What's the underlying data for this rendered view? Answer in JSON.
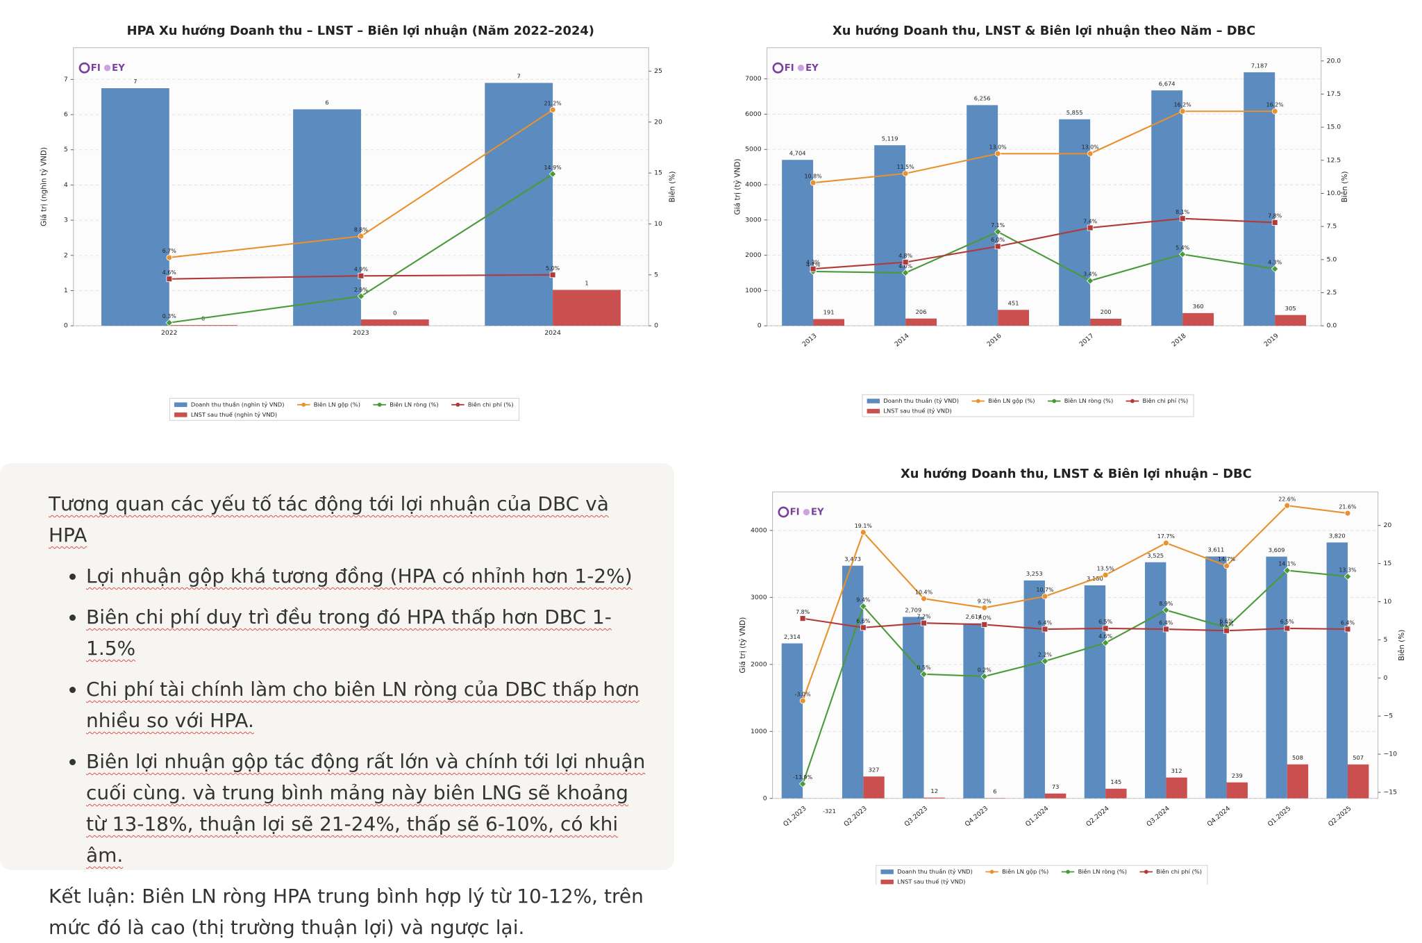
{
  "chart_data": [
    {
      "type": "bar",
      "title": "HPA Xu hướng Doanh thu – LNST – Biên lợi nhuận (Năm 2022–2024)",
      "ylabel": "Giá trị (nghìn tỷ VND)",
      "y2label": "Biên (%)",
      "watermark": [
        "FI",
        "EY"
      ],
      "grid": true,
      "xtick_rotation": 0,
      "categories": [
        "2022",
        "2023",
        "2024"
      ],
      "ylim": [
        0,
        7.9
      ],
      "yticks": [
        0,
        1,
        2,
        3,
        4,
        5,
        6,
        7
      ],
      "y2lim": [
        0,
        27.3
      ],
      "y2ticks": [
        0,
        5,
        10,
        15,
        20,
        25
      ],
      "series": [
        {
          "name": "Doanh thu thuần (nghìn tỷ VND)",
          "type": "bar",
          "color": "#5b8bbf",
          "values": [
            6.75,
            6.15,
            6.9
          ],
          "value_labels": [
            "7",
            "6",
            "7"
          ]
        },
        {
          "name": "LNST sau thuế (nghìn tỷ VND)",
          "type": "bar",
          "color": "#c9504e",
          "values": [
            0.02,
            0.18,
            1.02
          ],
          "value_labels": [
            "0",
            "0",
            "1"
          ]
        },
        {
          "name": "Biên LN gộp (%)",
          "type": "line",
          "marker": "o",
          "axis": "y2",
          "color": "#e8912d",
          "values": [
            6.7,
            8.8,
            21.2
          ],
          "value_labels": [
            "6.7%",
            "8.8%",
            "21.2%"
          ]
        },
        {
          "name": "Biên LN ròng (%)",
          "type": "line",
          "marker": "D",
          "axis": "y2",
          "color": "#4a9a3a",
          "values": [
            0.3,
            2.9,
            14.9
          ],
          "value_labels": [
            "0.3%",
            "2.9%",
            "14.9%"
          ]
        },
        {
          "name": "Biên chi phí (%)",
          "type": "line",
          "marker": "s",
          "axis": "y2",
          "color": "#b03a3a",
          "values": [
            4.6,
            4.9,
            5.0
          ],
          "value_labels": [
            "4.6%",
            "4.9%",
            "5.0%"
          ]
        }
      ]
    },
    {
      "type": "bar",
      "title": "Xu hướng Doanh thu, LNST & Biên lợi nhuận theo Năm – DBC",
      "ylabel": "Giá trị (tỷ VND)",
      "y2label": "Biên (%)",
      "watermark": [
        "FI",
        "EY"
      ],
      "grid": true,
      "xtick_rotation": 40,
      "categories": [
        "2013",
        "2014",
        "2016",
        "2017",
        "2018",
        "2019"
      ],
      "ylim": [
        0,
        7884
      ],
      "yticks": [
        0,
        1000,
        2000,
        3000,
        4000,
        5000,
        6000,
        7000
      ],
      "y2lim": [
        0,
        21
      ],
      "y2ticks": [
        {
          "value": 0,
          "label": "0.0"
        },
        2.5,
        {
          "value": 5,
          "label": "5.0"
        },
        7.5,
        {
          "value": 10,
          "label": "10.0"
        },
        12.5,
        {
          "value": 15,
          "label": "15.0"
        },
        17.5,
        {
          "value": 20,
          "label": "20.0"
        }
      ],
      "series": [
        {
          "name": "Doanh thu thuần (tỷ VND)",
          "type": "bar",
          "color": "#5b8bbf",
          "values": [
            4704,
            5119,
            6256,
            5855,
            6674,
            7187
          ],
          "value_labels": [
            "4,704",
            "5,119",
            "6,256",
            "5,855",
            "6,674",
            "7,187"
          ]
        },
        {
          "name": "LNST sau thuế (tỷ VND)",
          "type": "bar",
          "color": "#c9504e",
          "values": [
            191,
            206,
            451,
            200,
            360,
            305
          ]
        },
        {
          "name": "Biên LN gộp (%)",
          "type": "line",
          "marker": "o",
          "axis": "y2",
          "color": "#e8912d",
          "values": [
            10.8,
            11.5,
            13.0,
            13.0,
            16.2,
            16.2
          ],
          "value_labels": [
            "10.8%",
            "11.5%",
            "13.0%",
            "13.0%",
            "16.2%",
            "16.2%"
          ]
        },
        {
          "name": "Biên LN ròng (%)",
          "type": "line",
          "marker": "D",
          "axis": "y2",
          "color": "#4a9a3a",
          "values": [
            4.1,
            4.0,
            7.1,
            3.4,
            5.4,
            4.3
          ],
          "value_labels": [
            "4.1%",
            "4.0%",
            "7.1%",
            "3.4%",
            "5.4%",
            "4.3%"
          ]
        },
        {
          "name": "Biên chi phí (%)",
          "type": "line",
          "marker": "s",
          "axis": "y2",
          "color": "#b03a3a",
          "values": [
            4.3,
            4.8,
            6.0,
            7.4,
            8.1,
            7.8
          ],
          "value_labels": [
            "4.3%",
            "4.8%",
            "6.0%",
            "7.4%",
            "8.1%",
            "7.8%"
          ]
        }
      ]
    },
    {
      "type": "bar",
      "title": "Xu hướng Doanh thu, LNST & Biên lợi nhuận – DBC",
      "ylabel": "Giá trị (tỷ VND)",
      "y2label": "Biên (%)",
      "watermark": [
        "FI",
        "EY"
      ],
      "grid": true,
      "xtick_rotation": 40,
      "categories": [
        "Q1.2023",
        "Q2.2023",
        "Q3.2023",
        "Q4.2023",
        "Q1.2024",
        "Q2.2024",
        "Q3.2024",
        "Q4.2024",
        "Q1.2025",
        "Q2.2025"
      ],
      "ylim": [
        0,
        4575
      ],
      "yticks": [
        0,
        1000,
        2000,
        3000,
        4000
      ],
      "y2lim": [
        -15.8,
        24.4
      ],
      "y2ticks": [
        {
          "value": -15,
          "label": "−15"
        },
        {
          "value": -10,
          "label": "−10"
        },
        {
          "value": -5,
          "label": "−5"
        },
        0,
        5,
        10,
        15,
        20
      ],
      "series": [
        {
          "name": "Doanh thu thuần (tỷ VND)",
          "type": "bar",
          "color": "#5b8bbf",
          "values": [
            2314,
            3473,
            2709,
            2614,
            3253,
            3180,
            3525,
            3611,
            3609,
            3820
          ],
          "value_labels": [
            "2,314",
            "3,473",
            "2,709",
            "2,614",
            "3,253",
            "3,180",
            "3,525",
            "3,611",
            "3,609",
            "3,820"
          ]
        },
        {
          "name": "LNST sau thuế (tỷ VND)",
          "type": "bar",
          "color": "#c9504e",
          "values": [
            -321,
            327,
            12,
            6,
            73,
            145,
            312,
            239,
            508,
            507
          ]
        },
        {
          "name": "Biên LN gộp (%)",
          "type": "line",
          "marker": "o",
          "axis": "y2",
          "color": "#e8912d",
          "values": [
            -3.0,
            19.1,
            10.4,
            9.2,
            10.7,
            13.5,
            17.7,
            14.7,
            22.6,
            21.6
          ],
          "value_labels": [
            "-3.0%",
            "19.1%",
            "10.4%",
            "9.2%",
            "10.7%",
            "13.5%",
            "17.7%",
            "14.7%",
            "22.6%",
            "21.6%"
          ]
        },
        {
          "name": "Biên LN ròng (%)",
          "type": "line",
          "marker": "D",
          "axis": "y2",
          "color": "#4a9a3a",
          "values": [
            -13.9,
            9.4,
            0.5,
            0.2,
            2.2,
            4.6,
            8.9,
            6.6,
            14.1,
            13.3
          ],
          "value_labels": [
            "-13.9%",
            "9.4%",
            "0.5%",
            "0.2%",
            "2.2%",
            "4.6%",
            "8.9%",
            "6.6%",
            "14.1%",
            "13.3%"
          ]
        },
        {
          "name": "Biên chi phí (%)",
          "type": "line",
          "marker": "s",
          "axis": "y2",
          "color": "#b03a3a",
          "values": [
            7.8,
            6.6,
            7.2,
            7.0,
            6.4,
            6.5,
            6.4,
            6.2,
            6.5,
            6.4
          ],
          "value_labels": [
            "7.8%",
            "6.6%",
            "7.2%",
            "7.0%",
            "6.4%",
            "6.5%",
            "6.4%",
            "6.2%",
            "6.5%",
            "6.4%"
          ]
        }
      ]
    }
  ],
  "note": {
    "title": "Tương quan các yếu tố tác động tới lợi nhuận của DBC và HPA",
    "bullets": [
      "Lợi nhuận gộp khá tương đồng (HPA có nhỉnh hơn 1-2%)",
      "Biên chi phí duy trì đều trong đó HPA thấp hơn DBC 1-1.5%",
      "Chi phí tài chính làm cho biên LN ròng của DBC thấp hơn nhiều so với HPA.",
      "Biên lợi nhuận gộp tác động rất lớn và chính tới lợi nhuận cuối cùng. và trung bình mảng này biên LNG sẽ khoảng từ 13-18%, thuận lợi sẽ 21-24%, thấp sẽ 6-10%, có khi âm."
    ],
    "conclusion": "Kết luận: Biên LN ròng HPA trung bình hợp lý từ 10-12%, trên mức đó là cao (thị trường thuận lợi) và ngược lại."
  }
}
